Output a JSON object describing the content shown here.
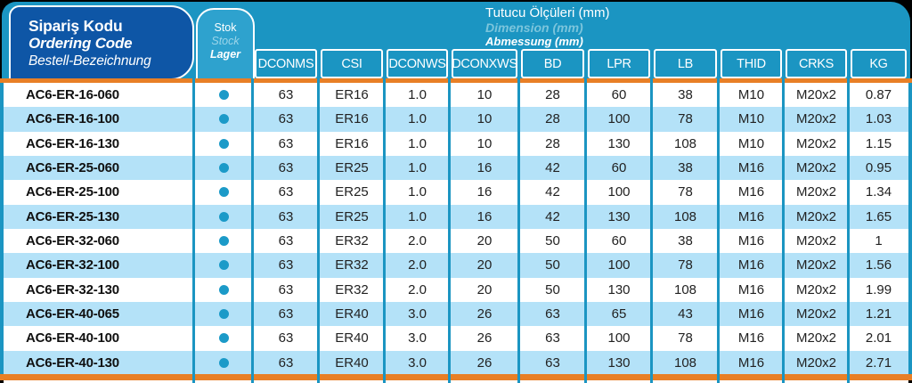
{
  "ordering_code_header": {
    "tr": "Sipariş Kodu",
    "en": "Ordering Code",
    "de": "Bestell-Bezeichnung"
  },
  "stock_header": {
    "tr": "Stok",
    "en": "Stock",
    "de": "Lager"
  },
  "dimensions_header": {
    "tr": "Tutucu Ölçüleri (mm)",
    "en": "Dimension (mm)",
    "de": "Abmessung (mm)"
  },
  "table": {
    "columns": [
      "DCONMS",
      "CSI",
      "DCONWS",
      "DCONXWS",
      "BD",
      "LPR",
      "LB",
      "THID",
      "CRKS",
      "KG"
    ],
    "rows": [
      {
        "code": "AC6-ER-16-060",
        "in_stock": true,
        "values": [
          "63",
          "ER16",
          "1.0",
          "10",
          "28",
          "60",
          "38",
          "M10",
          "M20x2",
          "0.87"
        ]
      },
      {
        "code": "AC6-ER-16-100",
        "in_stock": true,
        "values": [
          "63",
          "ER16",
          "1.0",
          "10",
          "28",
          "100",
          "78",
          "M10",
          "M20x2",
          "1.03"
        ]
      },
      {
        "code": "AC6-ER-16-130",
        "in_stock": true,
        "values": [
          "63",
          "ER16",
          "1.0",
          "10",
          "28",
          "130",
          "108",
          "M10",
          "M20x2",
          "1.15"
        ]
      },
      {
        "code": "AC6-ER-25-060",
        "in_stock": true,
        "values": [
          "63",
          "ER25",
          "1.0",
          "16",
          "42",
          "60",
          "38",
          "M16",
          "M20x2",
          "0.95"
        ]
      },
      {
        "code": "AC6-ER-25-100",
        "in_stock": true,
        "values": [
          "63",
          "ER25",
          "1.0",
          "16",
          "42",
          "100",
          "78",
          "M16",
          "M20x2",
          "1.34"
        ]
      },
      {
        "code": "AC6-ER-25-130",
        "in_stock": true,
        "values": [
          "63",
          "ER25",
          "1.0",
          "16",
          "42",
          "130",
          "108",
          "M16",
          "M20x2",
          "1.65"
        ]
      },
      {
        "code": "AC6-ER-32-060",
        "in_stock": true,
        "values": [
          "63",
          "ER32",
          "2.0",
          "20",
          "50",
          "60",
          "38",
          "M16",
          "M20x2",
          "1"
        ]
      },
      {
        "code": "AC6-ER-32-100",
        "in_stock": true,
        "values": [
          "63",
          "ER32",
          "2.0",
          "20",
          "50",
          "100",
          "78",
          "M16",
          "M20x2",
          "1.56"
        ]
      },
      {
        "code": "AC6-ER-32-130",
        "in_stock": true,
        "values": [
          "63",
          "ER32",
          "2.0",
          "20",
          "50",
          "130",
          "108",
          "M16",
          "M20x2",
          "1.99"
        ]
      },
      {
        "code": "AC6-ER-40-065",
        "in_stock": true,
        "values": [
          "63",
          "ER40",
          "3.0",
          "26",
          "63",
          "65",
          "43",
          "M16",
          "M20x2",
          "1.21"
        ]
      },
      {
        "code": "AC6-ER-40-100",
        "in_stock": true,
        "values": [
          "63",
          "ER40",
          "3.0",
          "26",
          "63",
          "100",
          "78",
          "M16",
          "M20x2",
          "2.01"
        ]
      },
      {
        "code": "AC6-ER-40-130",
        "in_stock": true,
        "values": [
          "63",
          "ER40",
          "3.0",
          "26",
          "63",
          "130",
          "108",
          "M16",
          "M20x2",
          "2.71"
        ]
      }
    ]
  },
  "colors": {
    "dark_blue": "#0e56a6",
    "teal": "#1b95c2",
    "stok_box": "#2ea2ce",
    "row_alt": "#b4e2f8",
    "orange": "#e87f26",
    "stock_dot": "#1b9ac8",
    "text": "#222222"
  },
  "icons": {
    "stock_dot": "in-stock-dot"
  }
}
